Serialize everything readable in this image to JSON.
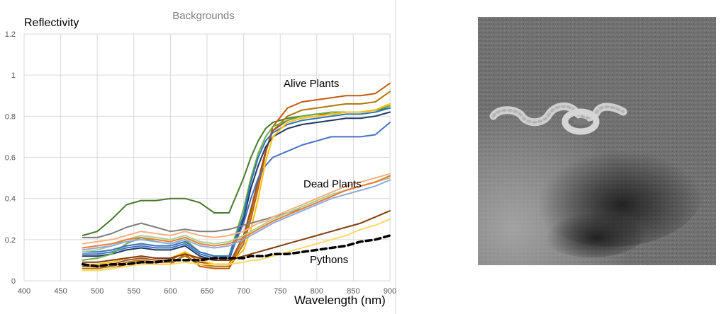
{
  "chart_data": {
    "type": "line",
    "title": "Backgrounds",
    "xlabel": "Wavelength (nm)",
    "ylabel": "Reflectivity",
    "xlim": [
      400,
      900
    ],
    "ylim": [
      0,
      1.2
    ],
    "xticks": [
      "400",
      "450",
      "500",
      "550",
      "600",
      "650",
      "700",
      "750",
      "800",
      "850",
      "900"
    ],
    "yticks": [
      "0",
      "0.2",
      "0.4",
      "0.6",
      "0.8",
      "1",
      "1.2"
    ],
    "grid": true,
    "annotations": [
      "Alive Plants",
      "Dead Plants",
      "Pythons"
    ],
    "x": [
      480,
      500,
      520,
      540,
      560,
      580,
      600,
      620,
      640,
      660,
      680,
      700,
      710,
      720,
      730,
      740,
      760,
      780,
      800,
      820,
      840,
      860,
      880,
      900
    ],
    "series": [
      {
        "color": "#4a7a2e",
        "style": "solid",
        "values": [
          0.22,
          0.24,
          0.3,
          0.37,
          0.39,
          0.39,
          0.4,
          0.4,
          0.38,
          0.33,
          0.33,
          0.5,
          0.6,
          0.68,
          0.74,
          0.77,
          0.79,
          0.8,
          0.81,
          0.81,
          0.82,
          0.82,
          0.83,
          0.84
        ]
      },
      {
        "color": "#c55a11",
        "style": "solid",
        "values": [
          0.05,
          0.05,
          0.06,
          0.08,
          0.09,
          0.08,
          0.08,
          0.13,
          0.07,
          0.06,
          0.06,
          0.18,
          0.3,
          0.45,
          0.62,
          0.75,
          0.84,
          0.87,
          0.88,
          0.89,
          0.9,
          0.9,
          0.91,
          0.96
        ]
      },
      {
        "color": "#b07800",
        "style": "solid",
        "values": [
          0.06,
          0.06,
          0.07,
          0.09,
          0.1,
          0.09,
          0.09,
          0.12,
          0.08,
          0.07,
          0.07,
          0.2,
          0.33,
          0.48,
          0.63,
          0.73,
          0.8,
          0.83,
          0.84,
          0.85,
          0.86,
          0.86,
          0.87,
          0.92
        ]
      },
      {
        "color": "#a0522d",
        "style": "solid",
        "values": [
          0.07,
          0.07,
          0.08,
          0.1,
          0.11,
          0.1,
          0.1,
          0.14,
          0.09,
          0.08,
          0.08,
          0.22,
          0.35,
          0.49,
          0.63,
          0.73,
          0.78,
          0.8,
          0.81,
          0.81,
          0.82,
          0.82,
          0.83,
          0.86
        ]
      },
      {
        "color": "#1f3864",
        "style": "solid",
        "values": [
          0.12,
          0.12,
          0.13,
          0.15,
          0.16,
          0.15,
          0.15,
          0.17,
          0.12,
          0.1,
          0.1,
          0.3,
          0.45,
          0.56,
          0.65,
          0.7,
          0.74,
          0.76,
          0.77,
          0.78,
          0.79,
          0.79,
          0.8,
          0.82
        ]
      },
      {
        "color": "#4472c4",
        "style": "solid",
        "values": [
          0.13,
          0.13,
          0.14,
          0.16,
          0.17,
          0.16,
          0.16,
          0.18,
          0.13,
          0.11,
          0.11,
          0.28,
          0.4,
          0.5,
          0.56,
          0.6,
          0.63,
          0.66,
          0.68,
          0.7,
          0.7,
          0.7,
          0.71,
          0.77
        ]
      },
      {
        "color": "#70ad47",
        "style": "solid",
        "values": [
          0.1,
          0.11,
          0.13,
          0.18,
          0.21,
          0.19,
          0.18,
          0.2,
          0.14,
          0.12,
          0.12,
          0.35,
          0.5,
          0.62,
          0.7,
          0.75,
          0.78,
          0.8,
          0.81,
          0.82,
          0.82,
          0.82,
          0.83,
          0.85
        ]
      },
      {
        "color": "#2e75b6",
        "style": "solid",
        "values": [
          0.14,
          0.14,
          0.15,
          0.17,
          0.18,
          0.17,
          0.17,
          0.19,
          0.14,
          0.12,
          0.12,
          0.32,
          0.48,
          0.6,
          0.68,
          0.72,
          0.76,
          0.78,
          0.79,
          0.8,
          0.81,
          0.81,
          0.82,
          0.84
        ]
      },
      {
        "color": "#ffc000",
        "style": "solid",
        "values": [
          0.08,
          0.08,
          0.09,
          0.11,
          0.12,
          0.11,
          0.11,
          0.14,
          0.1,
          0.08,
          0.08,
          0.15,
          0.25,
          0.4,
          0.58,
          0.7,
          0.77,
          0.79,
          0.8,
          0.81,
          0.82,
          0.82,
          0.83,
          0.86
        ]
      },
      {
        "color": "#7f7f7f",
        "style": "solid",
        "values": [
          0.21,
          0.21,
          0.23,
          0.26,
          0.28,
          0.26,
          0.24,
          0.25,
          0.24,
          0.24,
          0.25,
          0.27,
          0.28,
          0.29,
          0.3,
          0.31,
          0.33,
          0.35,
          0.38,
          0.41,
          0.44,
          0.46,
          0.48,
          0.51
        ]
      },
      {
        "color": "#f4b183",
        "style": "solid",
        "values": [
          0.18,
          0.19,
          0.2,
          0.22,
          0.24,
          0.23,
          0.22,
          0.24,
          0.22,
          0.21,
          0.22,
          0.24,
          0.26,
          0.28,
          0.29,
          0.31,
          0.34,
          0.37,
          0.4,
          0.43,
          0.46,
          0.48,
          0.5,
          0.52
        ]
      },
      {
        "color": "#a9d18e",
        "style": "solid",
        "values": [
          0.14,
          0.15,
          0.17,
          0.2,
          0.22,
          0.21,
          0.2,
          0.22,
          0.19,
          0.18,
          0.19,
          0.22,
          0.24,
          0.26,
          0.28,
          0.3,
          0.33,
          0.36,
          0.39,
          0.42,
          0.44,
          0.46,
          0.48,
          0.5
        ]
      },
      {
        "color": "#8faadc",
        "style": "solid",
        "values": [
          0.15,
          0.16,
          0.17,
          0.19,
          0.2,
          0.19,
          0.18,
          0.2,
          0.17,
          0.16,
          0.17,
          0.2,
          0.22,
          0.24,
          0.26,
          0.28,
          0.31,
          0.34,
          0.37,
          0.4,
          0.42,
          0.44,
          0.46,
          0.49
        ]
      },
      {
        "color": "#ed7d31",
        "style": "solid",
        "values": [
          0.16,
          0.17,
          0.18,
          0.2,
          0.21,
          0.2,
          0.19,
          0.21,
          0.18,
          0.17,
          0.18,
          0.21,
          0.23,
          0.25,
          0.27,
          0.29,
          0.32,
          0.35,
          0.38,
          0.41,
          0.44,
          0.46,
          0.48,
          0.51
        ]
      },
      {
        "color": "#843c0c",
        "style": "solid",
        "values": [
          0.09,
          0.09,
          0.1,
          0.11,
          0.12,
          0.11,
          0.11,
          0.13,
          0.11,
          0.1,
          0.1,
          0.12,
          0.13,
          0.14,
          0.15,
          0.16,
          0.18,
          0.2,
          0.22,
          0.24,
          0.26,
          0.28,
          0.31,
          0.34
        ]
      },
      {
        "color": "#ffd966",
        "style": "solid",
        "values": [
          0.05,
          0.05,
          0.06,
          0.07,
          0.08,
          0.08,
          0.08,
          0.09,
          0.08,
          0.08,
          0.08,
          0.09,
          0.1,
          0.1,
          0.11,
          0.12,
          0.14,
          0.16,
          0.18,
          0.2,
          0.22,
          0.25,
          0.27,
          0.3
        ]
      },
      {
        "color": "#000000",
        "style": "dashed",
        "values": [
          0.08,
          0.07,
          0.08,
          0.08,
          0.09,
          0.09,
          0.1,
          0.1,
          0.1,
          0.11,
          0.11,
          0.11,
          0.12,
          0.12,
          0.12,
          0.13,
          0.13,
          0.14,
          0.15,
          0.16,
          0.17,
          0.19,
          0.2,
          0.22
        ]
      }
    ]
  },
  "photo": {
    "colors": {
      "bg": "#6f6f6f",
      "dark": "#2a2a2a",
      "grass": "#9a9a9a",
      "snake": "#d6d6d6"
    }
  }
}
